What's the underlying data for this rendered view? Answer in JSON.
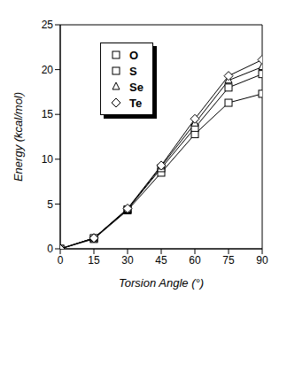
{
  "chart_data": {
    "type": "line",
    "x_label": "Torsion Angle (°)",
    "y_label": "Energy (kcal/mol)",
    "x": [
      0,
      15,
      30,
      45,
      60,
      75,
      90
    ],
    "xlim": [
      0,
      90
    ],
    "xticks": [
      0,
      15,
      30,
      45,
      60,
      75,
      90
    ],
    "ylim": [
      0,
      25
    ],
    "yticks": [
      0,
      5,
      10,
      15,
      20,
      25
    ],
    "grid": false,
    "legend": "upper left",
    "series": [
      {
        "name": "O",
        "color": "#000000",
        "marker": "square",
        "values": [
          0,
          1.1,
          4.3,
          8.5,
          12.8,
          16.3,
          17.3
        ]
      },
      {
        "name": "S",
        "color": "#000000",
        "marker": "square",
        "values": [
          0,
          1.2,
          4.4,
          9.0,
          13.5,
          18.0,
          19.5
        ]
      },
      {
        "name": "Se",
        "color": "#000000",
        "marker": "triangle",
        "values": [
          0,
          1.2,
          4.4,
          9.2,
          14.0,
          18.8,
          20.3
        ]
      },
      {
        "name": "Te",
        "color": "#000000",
        "marker": "diamond",
        "values": [
          0,
          1.2,
          4.5,
          9.3,
          14.5,
          19.3,
          21.1
        ]
      }
    ]
  }
}
